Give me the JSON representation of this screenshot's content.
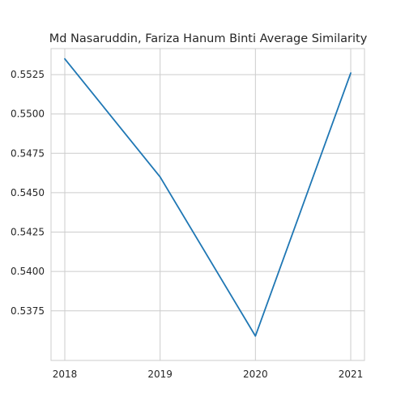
{
  "chart_data": {
    "type": "line",
    "title": "Md Nasaruddin, Fariza Hanum Binti Average Similarity",
    "xlabel": "",
    "ylabel": "",
    "x": [
      "2018",
      "2019",
      "2020",
      "2021"
    ],
    "series": [
      {
        "values": [
          0.5535,
          0.546,
          0.5359,
          0.5526
        ],
        "color": "#1f77b4"
      }
    ],
    "ylim": [
      0.53435,
      0.55415
    ],
    "yticks": [
      "0.5375",
      "0.5400",
      "0.5425",
      "0.5450",
      "0.5475",
      "0.5500",
      "0.5525"
    ],
    "grid": true,
    "legend": "none"
  }
}
